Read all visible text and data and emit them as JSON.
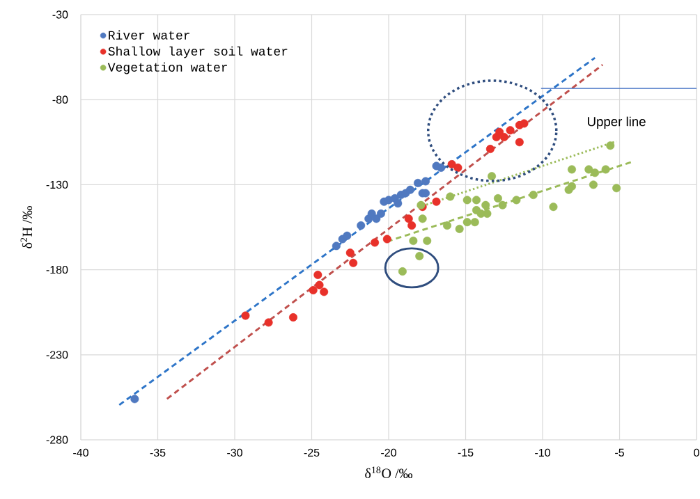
{
  "chart_data": {
    "type": "scatter",
    "xlabel": "δ$^{18}$O /‰",
    "ylabel": "δ$^{2}$H /‰",
    "xlim": [
      -40,
      0
    ],
    "ylim": [
      -280,
      -30
    ],
    "xticks": [
      -40,
      -35,
      -30,
      -25,
      -20,
      -15,
      -10,
      -5,
      0
    ],
    "yticks": [
      -30,
      -80,
      -130,
      -180,
      -230,
      -280
    ],
    "grid": true,
    "legend": "top left",
    "annotations": [
      {
        "text": "Upper line",
        "x": -5.2,
        "y": -104.5
      }
    ],
    "series": [
      {
        "name": "River water",
        "color": "#5079c0",
        "marker": "circle",
        "x": [
          -36.5,
          -23.4,
          -23.0,
          -22.7,
          -21.8,
          -21.3,
          -21.1,
          -20.8,
          -20.5,
          -20.3,
          -20.0,
          -19.6,
          -19.4,
          -19.2,
          -18.9,
          -18.6,
          -18.1,
          -17.8,
          -17.6,
          -17.6,
          -16.9,
          -16.6
        ],
        "values": [
          -256,
          -166,
          -162,
          -160,
          -154,
          -150,
          -147,
          -150,
          -147,
          -140,
          -139,
          -138,
          -141,
          -136,
          -135,
          -133,
          -129,
          -135,
          -128,
          -135,
          -119,
          -120
        ]
      },
      {
        "name": "Shallow layer soil water",
        "color": "#e8312a",
        "marker": "circle",
        "x": [
          -29.3,
          -27.8,
          -26.2,
          -24.9,
          -24.6,
          -24.5,
          -24.2,
          -22.5,
          -22.3,
          -20.9,
          -20.1,
          -18.7,
          -18.5,
          -17.8,
          -16.9,
          -15.9,
          -15.5,
          -13.4,
          -13.0,
          -12.8,
          -12.5,
          -12.1,
          -11.5,
          -11.2,
          -11.5
        ],
        "values": [
          -207,
          -211,
          -208,
          -192,
          -183,
          -189,
          -193,
          -170,
          -176,
          -164,
          -162,
          -150,
          -154,
          -143,
          -140,
          -118,
          -120,
          -109,
          -102,
          -99,
          -102,
          -98,
          -95,
          -94,
          -105
        ]
      },
      {
        "name": "Vegetation water",
        "color": "#9bbb59",
        "marker": "circle",
        "x": [
          -19.1,
          -18.4,
          -18.0,
          -17.5,
          -17.8,
          -17.9,
          -16.2,
          -16.0,
          -15.4,
          -14.9,
          -14.9,
          -14.4,
          -14.3,
          -14.3,
          -14.0,
          -13.6,
          -13.7,
          -13.3,
          -12.9,
          -12.6,
          -11.7,
          -10.6,
          -9.3,
          -8.3,
          -8.1,
          -8.1,
          -7.0,
          -6.6,
          -6.7,
          -5.9,
          -5.6,
          -5.2
        ],
        "values": [
          -181,
          -163,
          -172,
          -163,
          -150,
          -142,
          -154,
          -137,
          -156,
          -139,
          -152,
          -152,
          -145,
          -139,
          -147,
          -147,
          -142,
          -125,
          -138,
          -142,
          -139,
          -136,
          -143,
          -133,
          -131,
          -121,
          -121,
          -123,
          -130,
          -121,
          -107,
          -132
        ]
      },
      {
        "type": "line",
        "color": "#2e75c8",
        "line_style": "dashed",
        "marker": "none",
        "x": [
          -37.5,
          -6.6
        ],
        "values": [
          -259.5,
          -55.4
        ]
      },
      {
        "type": "line",
        "color": "#c0504d",
        "line_style": "dashed",
        "marker": "none",
        "x": [
          -34.4,
          -6.1
        ],
        "values": [
          -255.9,
          -59.5
        ]
      },
      {
        "type": "line",
        "color": "#9bbb59",
        "line_style": "dashed",
        "marker": "none",
        "x": [
          -20.1,
          -4.1
        ],
        "values": [
          -163.4,
          -116.3
        ]
      },
      {
        "type": "line",
        "color": "#9bbb59",
        "line_style": "dotted",
        "marker": "none",
        "x": [
          -17.8,
          -5.2
        ],
        "values": [
          -142.5,
          -104.5
        ]
      },
      {
        "type": "line",
        "color": "#4472c4",
        "line_style": "solid",
        "marker": "none",
        "x": [
          -10.1,
          0
        ],
        "values": [
          -73.4,
          -73.4
        ]
      }
    ]
  }
}
